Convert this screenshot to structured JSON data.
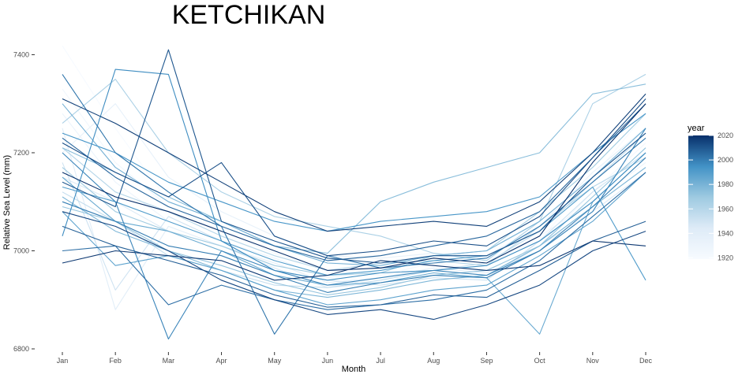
{
  "chart_data": {
    "type": "line",
    "title": "KETCHIKAN",
    "xlabel": "Month",
    "ylabel": "Relative Sea Level (mm)",
    "categories": [
      "Jan",
      "Feb",
      "Mar",
      "Apr",
      "May",
      "Jun",
      "Jul",
      "Aug",
      "Sep",
      "Oct",
      "Nov",
      "Dec"
    ],
    "ylim": [
      6800,
      7420
    ],
    "yticks": [
      6800,
      7000,
      7200,
      7400
    ],
    "grid": false,
    "legend": {
      "title": "year",
      "position": "right",
      "type": "colorbar",
      "range": [
        1919,
        2020
      ],
      "ticks": [
        1920,
        1940,
        1960,
        1980,
        2000,
        2020
      ],
      "color_low": "#f7fbff",
      "color_high": "#08306b"
    },
    "series": [
      {
        "year": 1920,
        "values": [
          7418,
          7250,
          7100,
          7060,
          7010,
          6975,
          6980,
          6990,
          6985,
          7020,
          7150,
          7280
        ]
      },
      {
        "year": 1925,
        "values": [
          7330,
          7180,
          7090,
          7040,
          6995,
          6960,
          6950,
          6975,
          6960,
          7010,
          7120,
          7220
        ]
      },
      {
        "year": 1930,
        "values": [
          7280,
          7140,
          7060,
          7020,
          6985,
          6945,
          6960,
          6980,
          6970,
          7030,
          7100,
          7180
        ]
      },
      {
        "year": 1935,
        "values": [
          7200,
          7300,
          7150,
          7080,
          7030,
          6990,
          6985,
          6995,
          6990,
          7050,
          7160,
          7250
        ]
      },
      {
        "year": 1940,
        "values": [
          7250,
          6880,
          7050,
          7010,
          6975,
          6935,
          6945,
          6965,
          6955,
          7000,
          7090,
          7170
        ]
      },
      {
        "year": 1945,
        "values": [
          7150,
          7100,
          7040,
          7010,
          6965,
          6925,
          6935,
          6950,
          6945,
          7010,
          7080,
          7160
        ]
      },
      {
        "year": 1950,
        "values": [
          7180,
          6920,
          7070,
          7020,
          6960,
          6940,
          6930,
          6945,
          6940,
          7020,
          7120,
          7200
        ]
      },
      {
        "year": 1955,
        "values": [
          7120,
          7060,
          6990,
          6960,
          6930,
          6925,
          6940,
          6960,
          6975,
          7040,
          7140,
          7240
        ]
      },
      {
        "year": 1960,
        "values": [
          7210,
          7120,
          7080,
          7030,
          6990,
          6960,
          6975,
          6980,
          6970,
          7050,
          7130,
          7190
        ]
      },
      {
        "year": 1964,
        "values": [
          7260,
          7350,
          7200,
          7120,
          7070,
          7050,
          7030,
          6995,
          6980,
          7060,
          7300,
          7360
        ]
      },
      {
        "year": 1968,
        "values": [
          7170,
          7080,
          7040,
          7010,
          6970,
          6950,
          6955,
          6990,
          7000,
          7080,
          7170,
          7280
        ]
      },
      {
        "year": 1972,
        "values": [
          7090,
          7060,
          7000,
          6970,
          6935,
          6910,
          6925,
          6950,
          6960,
          7010,
          7110,
          7210
        ]
      },
      {
        "year": 1975,
        "values": [
          7210,
          7160,
          7110,
          7060,
          7010,
          6995,
          7100,
          7140,
          7170,
          7200,
          7320,
          7340
        ]
      },
      {
        "year": 1978,
        "values": [
          7110,
          7040,
          7000,
          6960,
          6920,
          6905,
          6920,
          6940,
          6950,
          7010,
          7090,
          7170
        ]
      },
      {
        "year": 1981,
        "values": [
          7300,
          7170,
          7100,
          7060,
          7010,
          6975,
          6970,
          6990,
          7000,
          7060,
          7150,
          7250
        ]
      },
      {
        "year": 1984,
        "values": [
          7150,
          7060,
          7040,
          7000,
          6950,
          6930,
          6935,
          6955,
          6945,
          6830,
          7100,
          7200
        ]
      },
      {
        "year": 1987,
        "values": [
          7080,
          6970,
          6990,
          6960,
          6920,
          6890,
          6900,
          6920,
          6930,
          6990,
          7060,
          7160
        ]
      },
      {
        "year": 1990,
        "values": [
          7130,
          7100,
          7060,
          7020,
          6980,
          6950,
          6960,
          6980,
          6990,
          7040,
          7130,
          6940
        ]
      },
      {
        "year": 1993,
        "values": [
          7240,
          7200,
          7140,
          7100,
          7060,
          7040,
          7060,
          7070,
          7080,
          7110,
          7200,
          7280
        ]
      },
      {
        "year": 1996,
        "values": [
          7030,
          7370,
          7360,
          7020,
          6960,
          6940,
          6955,
          6960,
          6970,
          7020,
          7100,
          7200
        ]
      },
      {
        "year": 1998,
        "values": [
          7200,
          7100,
          6820,
          7000,
          6960,
          6930,
          6945,
          6960,
          6950,
          7000,
          7080,
          7250
        ]
      },
      {
        "year": 2000,
        "values": [
          7100,
          7060,
          7010,
          6990,
          6950,
          6915,
          6935,
          6950,
          6945,
          7000,
          7090,
          7190
        ]
      },
      {
        "year": 2002,
        "values": [
          7360,
          7200,
          7120,
          7050,
          6830,
          6990,
          6965,
          6975,
          6985,
          7050,
          7140,
          7230
        ]
      },
      {
        "year": 2004,
        "values": [
          7000,
          7010,
          6890,
          6930,
          6900,
          6880,
          6890,
          6900,
          6920,
          6980,
          7070,
          7160
        ]
      },
      {
        "year": 2006,
        "values": [
          7230,
          7150,
          7090,
          7050,
          7010,
          6980,
          6990,
          7010,
          7030,
          7080,
          7190,
          7300
        ]
      },
      {
        "year": 2008,
        "values": [
          7050,
          7010,
          6980,
          6950,
          6910,
          6885,
          6890,
          6910,
          6905,
          6960,
          7020,
          7060
        ]
      },
      {
        "year": 2010,
        "values": [
          7140,
          7090,
          7410,
          7060,
          7020,
          6985,
          6975,
          6990,
          6990,
          7040,
          7150,
          7240
        ]
      },
      {
        "year": 2012,
        "values": [
          7220,
          7160,
          7110,
          7180,
          7030,
          6990,
          7000,
          7020,
          7010,
          7070,
          7190,
          7310
        ]
      },
      {
        "year": 2014,
        "values": [
          7080,
          7050,
          7000,
          6940,
          6900,
          6870,
          6880,
          6860,
          6890,
          6930,
          7000,
          7040
        ]
      },
      {
        "year": 2016,
        "values": [
          7310,
          7260,
          7200,
          7140,
          7080,
          7040,
          7050,
          7060,
          7050,
          7100,
          7200,
          7320
        ]
      },
      {
        "year": 2018,
        "values": [
          6975,
          7000,
          6990,
          6980,
          6940,
          6950,
          6980,
          6970,
          6960,
          6970,
          7020,
          7010
        ]
      },
      {
        "year": 2020,
        "values": [
          7160,
          7110,
          7080,
          7040,
          7000,
          6960,
          6965,
          6985,
          6975,
          7030,
          7180,
          7300
        ]
      }
    ]
  }
}
